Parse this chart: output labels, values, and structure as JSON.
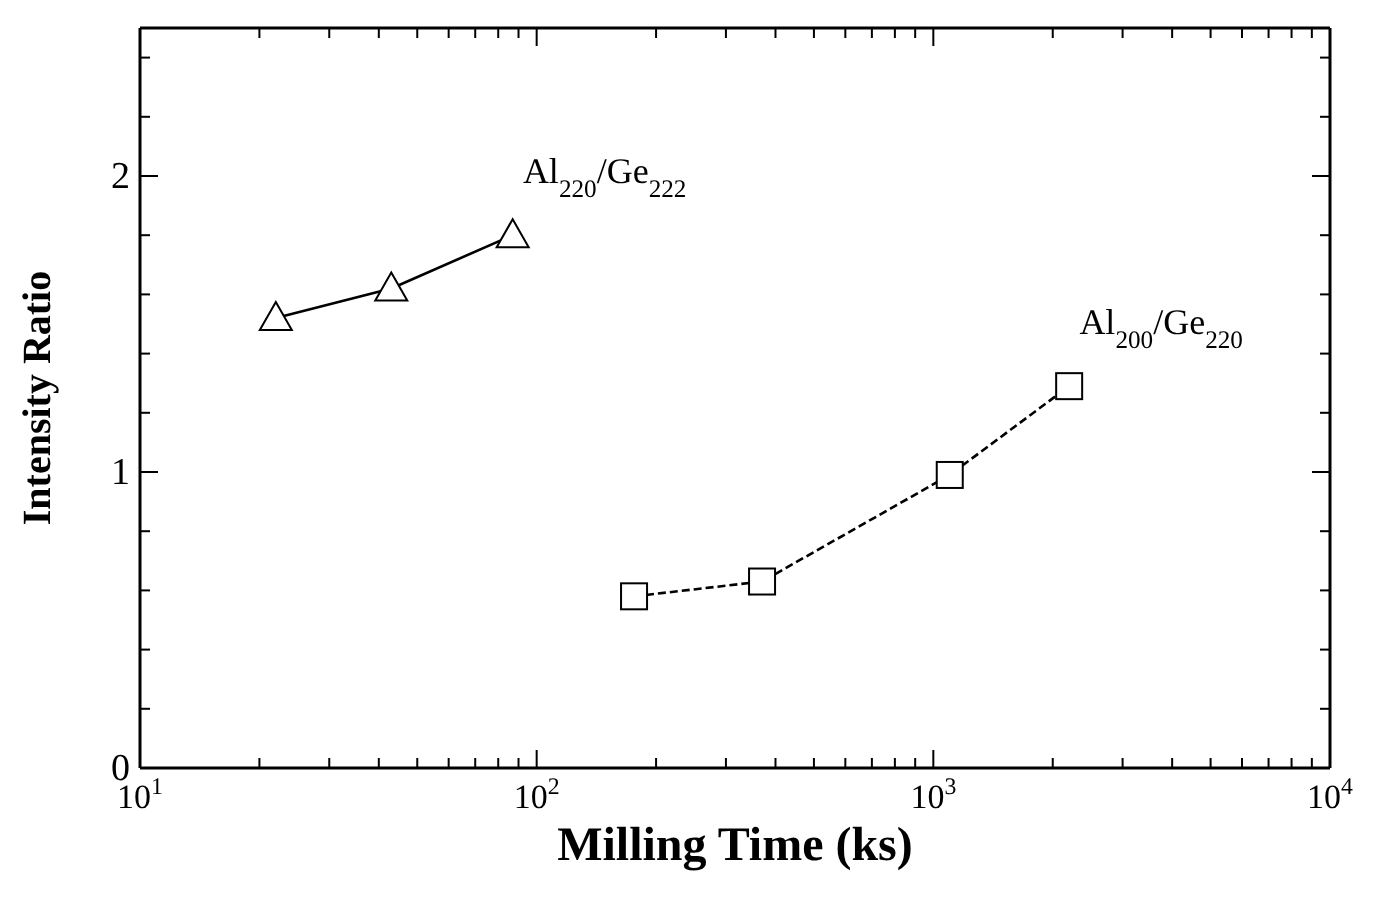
{
  "chart_data": {
    "type": "line",
    "xlabel": "Milling Time (ks)",
    "ylabel": "Intensity Ratio",
    "log": "x",
    "xlim": [
      10,
      10000
    ],
    "xticks": [
      {
        "value": 10,
        "label": "10$^{1}$"
      },
      {
        "value": 20,
        "label": null
      },
      {
        "value": 30,
        "label": null
      },
      {
        "value": 40,
        "label": null
      },
      {
        "value": 50,
        "label": null
      },
      {
        "value": 60,
        "label": null
      },
      {
        "value": 70,
        "label": null
      },
      {
        "value": 80,
        "label": null
      },
      {
        "value": 90,
        "label": null
      },
      {
        "value": 100,
        "label": "10$^{2}$"
      },
      {
        "value": 200,
        "label": null
      },
      {
        "value": 300,
        "label": null
      },
      {
        "value": 400,
        "label": null
      },
      {
        "value": 500,
        "label": null
      },
      {
        "value": 600,
        "label": null
      },
      {
        "value": 700,
        "label": null
      },
      {
        "value": 800,
        "label": null
      },
      {
        "value": 900,
        "label": null
      },
      {
        "value": 1000,
        "label": "10$^{3}$"
      },
      {
        "value": 2000,
        "label": null
      },
      {
        "value": 3000,
        "label": null
      },
      {
        "value": 4000,
        "label": null
      },
      {
        "value": 5000,
        "label": null
      },
      {
        "value": 6000,
        "label": null
      },
      {
        "value": 7000,
        "label": null
      },
      {
        "value": 8000,
        "label": null
      },
      {
        "value": 9000,
        "label": null
      },
      {
        "value": 10000,
        "label": "10$^{4}$"
      }
    ],
    "ylim": [
      0,
      2.5
    ],
    "yticks": [
      0,
      {
        "value": 0.2,
        "label": null
      },
      {
        "value": 0.4,
        "label": null
      },
      {
        "value": 0.6,
        "label": null
      },
      {
        "value": 0.8,
        "label": null
      },
      1,
      {
        "value": 1.2,
        "label": null
      },
      {
        "value": 1.4,
        "label": null
      },
      {
        "value": 1.6,
        "label": null
      },
      {
        "value": 1.8,
        "label": null
      },
      2,
      {
        "value": 2.2,
        "label": null
      },
      {
        "value": 2.4,
        "label": null
      }
    ],
    "series": [
      {
        "name": "Al$_{220}$/Ge$_{222}$",
        "color": "#000000",
        "marker": "triangle",
        "line_style": "solid",
        "x": [
          22,
          43,
          87
        ],
        "values": [
          1.52,
          1.62,
          1.8
        ]
      },
      {
        "name": "Al$_{200}$/Ge$_{220}$",
        "color": "#000000",
        "marker": "square",
        "line_style": "dashed",
        "x": [
          176,
          370,
          1100,
          2200
        ],
        "values": [
          0.58,
          0.63,
          0.99,
          1.29
        ]
      }
    ]
  }
}
